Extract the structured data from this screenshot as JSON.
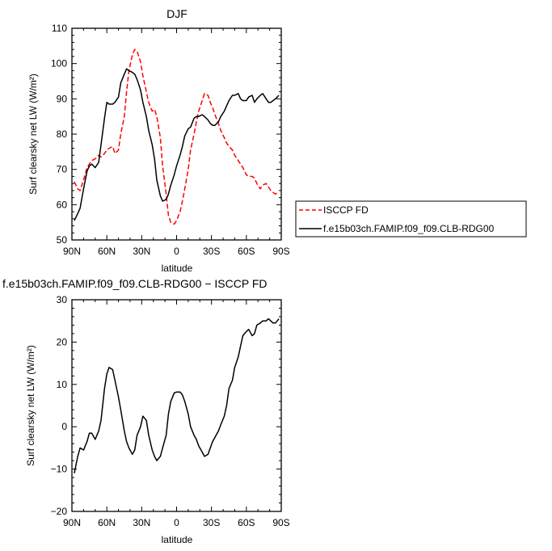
{
  "chart_data": [
    {
      "type": "line",
      "title": "DJF",
      "xlabel": "latitude",
      "ylabel": "Surf clearsky net LW (W/m²)",
      "xlim": [
        90,
        -90
      ],
      "ylim": [
        50,
        110
      ],
      "x_ticks": [
        90,
        60,
        30,
        0,
        -30,
        -60,
        -90
      ],
      "x_tick_labels": [
        "90N",
        "60N",
        "30N",
        "0",
        "30S",
        "60S",
        "90S"
      ],
      "y_ticks": [
        50,
        60,
        70,
        80,
        90,
        100,
        110
      ],
      "y_tick_labels": [
        "50",
        "60",
        "70",
        "80",
        "90",
        "100",
        "110"
      ],
      "legend_position": "right",
      "series": [
        {
          "name": "ISCCP FD",
          "color": "#ff0000",
          "style": "dashed",
          "x": [
            88,
            85,
            83,
            80,
            77,
            75,
            73,
            70,
            67,
            65,
            62,
            60,
            58,
            55,
            53,
            50,
            48,
            45,
            43,
            41,
            38,
            36,
            34,
            31,
            29,
            26,
            24,
            21,
            19,
            17,
            14,
            12,
            9,
            7,
            5,
            2,
            0,
            -3,
            -5,
            -7,
            -10,
            -12,
            -15,
            -17,
            -19,
            -22,
            -24,
            -27,
            -29,
            -31,
            -33,
            -36,
            -38,
            -41,
            -43,
            -45,
            -48,
            -50,
            -53,
            -55,
            -57,
            -60,
            -62,
            -65,
            -67,
            -69,
            -72,
            -74,
            -77,
            -79,
            -81,
            -83,
            -85,
            -88
          ],
          "values": [
            66.5,
            64.5,
            64,
            67,
            70.5,
            71.5,
            72.5,
            73,
            74,
            73.5,
            74.5,
            75.5,
            76,
            76.5,
            74.5,
            75.5,
            80,
            85,
            92,
            98,
            102.5,
            104,
            103.5,
            100.5,
            96.5,
            92,
            89,
            86.5,
            87,
            85,
            79,
            71,
            63,
            57,
            55,
            54.5,
            55.5,
            58,
            61,
            64.5,
            70,
            75.5,
            80,
            83.5,
            86.5,
            89.5,
            91.5,
            91,
            89,
            87.5,
            85.5,
            83,
            81,
            79,
            77.5,
            76.5,
            75.5,
            74,
            72.5,
            71.5,
            70.5,
            68.5,
            68,
            68,
            67.5,
            66,
            64.5,
            65.5,
            66,
            65,
            64,
            63.5,
            63,
            63.5
          ]
        },
        {
          "name": "f.e15b03ch.FAMIP.f09_f09.CLB-RDG00",
          "color": "#000000",
          "style": "solid",
          "x": [
            88,
            85,
            83,
            80,
            77,
            75,
            73,
            70,
            67,
            65,
            62,
            60,
            58,
            55,
            53,
            50,
            48,
            45,
            43,
            41,
            38,
            36,
            34,
            31,
            29,
            26,
            24,
            21,
            19,
            17,
            14,
            12,
            9,
            7,
            5,
            2,
            0,
            -3,
            -5,
            -7,
            -10,
            -12,
            -15,
            -17,
            -19,
            -22,
            -24,
            -27,
            -29,
            -31,
            -33,
            -36,
            -38,
            -41,
            -43,
            -45,
            -48,
            -50,
            -53,
            -55,
            -57,
            -60,
            -62,
            -65,
            -67,
            -69,
            -72,
            -74,
            -77,
            -79,
            -81,
            -83,
            -85,
            -88
          ],
          "values": [
            55.5,
            57.5,
            59,
            64.5,
            69.5,
            71,
            71.5,
            70.5,
            72,
            77,
            84.5,
            89,
            88.5,
            88.5,
            89,
            90.5,
            94.5,
            97,
            98.5,
            98,
            97.5,
            97,
            95.5,
            92.5,
            89,
            85,
            81,
            77,
            73,
            67,
            62.5,
            61,
            61.5,
            63,
            65.5,
            68.5,
            71,
            74,
            76.5,
            79.5,
            81.5,
            82,
            84.5,
            85,
            85,
            85.5,
            85,
            84,
            83,
            82.5,
            82.5,
            83.5,
            85,
            86.5,
            88,
            89.5,
            91,
            91,
            91.5,
            90,
            89.5,
            89.5,
            90.5,
            91,
            89,
            90,
            91,
            91.5,
            90,
            89,
            89,
            89.5,
            90,
            91
          ]
        }
      ]
    },
    {
      "type": "line",
      "title": "f.e15b03ch.FAMIP.f09_f09.CLB-RDG00 − ISCCP FD",
      "xlabel": "latitude",
      "ylabel": "Surf clearsky net LW (W/m²)",
      "xlim": [
        90,
        -90
      ],
      "ylim": [
        -20,
        30
      ],
      "x_ticks": [
        90,
        60,
        30,
        0,
        -30,
        -60,
        -90
      ],
      "x_tick_labels": [
        "90N",
        "60N",
        "30N",
        "0",
        "30S",
        "60S",
        "90S"
      ],
      "y_ticks": [
        -20,
        -10,
        0,
        10,
        20,
        30
      ],
      "y_tick_labels": [
        "−20",
        "−10",
        "0",
        "10",
        "20",
        "30"
      ],
      "series": [
        {
          "color": "#000000",
          "style": "solid",
          "x": [
            88,
            85,
            83,
            80,
            77,
            75,
            73,
            70,
            67,
            65,
            62,
            60,
            58,
            55,
            53,
            50,
            48,
            45,
            43,
            41,
            38,
            36,
            34,
            31,
            29,
            26,
            24,
            21,
            19,
            17,
            14,
            12,
            9,
            7,
            5,
            2,
            0,
            -3,
            -5,
            -7,
            -10,
            -12,
            -15,
            -17,
            -19,
            -22,
            -24,
            -27,
            -29,
            -31,
            -33,
            -36,
            -38,
            -41,
            -43,
            -45,
            -48,
            -50,
            -53,
            -55,
            -57,
            -60,
            -62,
            -65,
            -67,
            -69,
            -72,
            -74,
            -77,
            -79,
            -81,
            -83,
            -85,
            -88
          ],
          "values": [
            -11,
            -7,
            -5,
            -5.5,
            -3.5,
            -1.5,
            -1.5,
            -3,
            -1,
            1.5,
            9,
            12.5,
            14,
            13.5,
            11,
            7,
            4,
            -1,
            -3.5,
            -5,
            -6.5,
            -5.5,
            -2,
            0,
            2.5,
            1.5,
            -2,
            -5.5,
            -7,
            -8,
            -7,
            -5,
            -2,
            3,
            6,
            8,
            8.2,
            8.2,
            7.5,
            6,
            3,
            0,
            -2,
            -3,
            -4.5,
            -6,
            -7,
            -6.5,
            -5,
            -3.5,
            -2.5,
            -1,
            0.5,
            2.5,
            5,
            9,
            11,
            14,
            16.5,
            19,
            21.5,
            22.5,
            23,
            21.5,
            22,
            24,
            24.5,
            25,
            25,
            25.5,
            25,
            24.5,
            24.5,
            25.5
          ]
        }
      ]
    }
  ]
}
